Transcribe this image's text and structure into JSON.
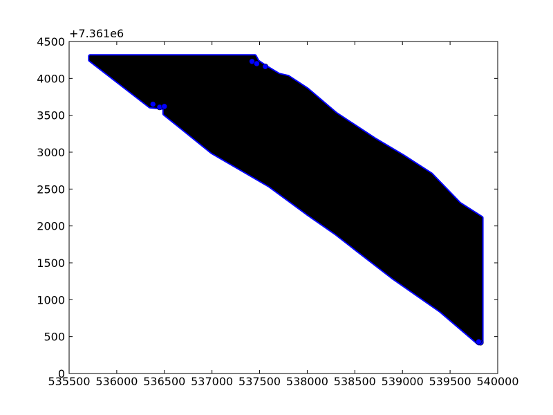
{
  "chart_data": {
    "type": "scatter",
    "title": "",
    "xlabel": "",
    "ylabel": "",
    "y_offset_label": "+7.361e6",
    "xlim": [
      535500,
      540000
    ],
    "ylim": [
      0,
      4500
    ],
    "x_ticks": [
      535500,
      536000,
      536500,
      537000,
      537500,
      538000,
      538500,
      539000,
      539500,
      540000
    ],
    "x_tick_labels": [
      "535500",
      "536000",
      "536500",
      "537000",
      "537500",
      "538000",
      "538500",
      "539000",
      "539500",
      "540000"
    ],
    "y_ticks": [
      0,
      500,
      1000,
      1500,
      2000,
      2500,
      3000,
      3500,
      4000,
      4500
    ],
    "y_tick_labels": [
      "0",
      "500",
      "1000",
      "1500",
      "2000",
      "2500",
      "3000",
      "3500",
      "4000",
      "4500"
    ],
    "grid": false,
    "series": [
      {
        "region_outline": [
          [
            535720,
            4300
          ],
          [
            537450,
            4300
          ],
          [
            537480,
            4230
          ],
          [
            537560,
            4160
          ],
          [
            537700,
            4050
          ],
          [
            537800,
            4020
          ],
          [
            538000,
            3850
          ],
          [
            538300,
            3520
          ],
          [
            538700,
            3180
          ],
          [
            539000,
            2950
          ],
          [
            539300,
            2700
          ],
          [
            539600,
            2300
          ],
          [
            539830,
            2110
          ],
          [
            539830,
            420
          ],
          [
            539800,
            410
          ],
          [
            539400,
            850
          ],
          [
            538900,
            1300
          ],
          [
            538500,
            1700
          ],
          [
            538300,
            1900
          ],
          [
            538000,
            2170
          ],
          [
            537600,
            2550
          ],
          [
            537000,
            3000
          ],
          [
            536500,
            3520
          ],
          [
            536500,
            3600
          ],
          [
            536350,
            3620
          ],
          [
            535720,
            4250
          ]
        ],
        "points": [
          [
            537420,
            4230
          ],
          [
            537470,
            4200
          ],
          [
            537560,
            4160
          ],
          [
            536380,
            3650
          ],
          [
            536450,
            3610
          ],
          [
            536500,
            3620
          ],
          [
            539820,
            420
          ],
          [
            539800,
            430
          ]
        ],
        "color": "#0000ff",
        "fill_color": "#000000"
      }
    ]
  }
}
